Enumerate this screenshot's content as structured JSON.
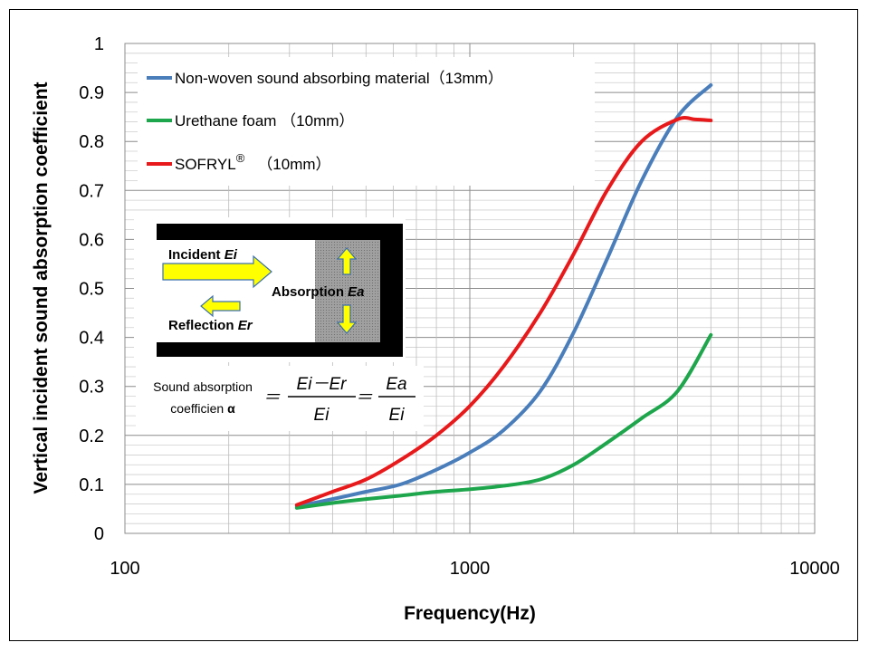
{
  "chart_data": {
    "type": "line",
    "xscale": "log",
    "xlim": [
      100,
      10000
    ],
    "ylim": [
      0,
      1
    ],
    "xticks": [
      "100",
      "1000",
      "10000"
    ],
    "yticks": [
      "0",
      "0.1",
      "0.2",
      "0.3",
      "0.4",
      "0.5",
      "0.6",
      "0.7",
      "0.8",
      "0.9",
      "1"
    ],
    "xlabel": "Frequency(Hz)",
    "ylabel": "Vertical incident sound absorption coefficient",
    "grid": true,
    "legend_position": "top-left",
    "series": [
      {
        "name": "Non-woven sound absorbing material（13mm）",
        "color": "#4a7ebb",
        "x": [
          315,
          400,
          500,
          630,
          800,
          1000,
          1250,
          1600,
          2000,
          2500,
          3150,
          4000,
          5000
        ],
        "y": [
          0.055,
          0.07,
          0.085,
          0.1,
          0.13,
          0.165,
          0.21,
          0.29,
          0.41,
          0.56,
          0.72,
          0.85,
          0.915
        ]
      },
      {
        "name": "Urethane foam （10mm）",
        "color": "#1ea64c",
        "x": [
          315,
          400,
          500,
          630,
          800,
          1000,
          1250,
          1600,
          2000,
          2500,
          3150,
          4000,
          5000
        ],
        "y": [
          0.052,
          0.062,
          0.07,
          0.077,
          0.085,
          0.09,
          0.097,
          0.11,
          0.14,
          0.185,
          0.235,
          0.29,
          0.405
        ]
      },
      {
        "name": "SOFRYL",
        "color": "#e8191b",
        "x": [
          315,
          400,
          500,
          630,
          800,
          1000,
          1250,
          1600,
          2000,
          2500,
          3150,
          4000,
          4500,
          5000
        ],
        "y": [
          0.058,
          0.085,
          0.11,
          0.15,
          0.2,
          0.26,
          0.34,
          0.45,
          0.57,
          0.7,
          0.8,
          0.845,
          0.845,
          0.843
        ]
      }
    ],
    "legend_labels": {
      "sofryl_name": "SOFRYL",
      "sofryl_mark": "®",
      "sofryl_suffix": "（10mm）"
    },
    "inset": {
      "incident_label": "Incident",
      "incident_symbol": "Ei",
      "absorption_label": "Absorption",
      "absorption_symbol": "Ea",
      "reflection_label": "Reflection",
      "reflection_symbol": "Er",
      "formula_line1": "Sound absorption",
      "formula_line2": "coefficien",
      "formula_alpha": "α",
      "frac1_num": "Ei－Er",
      "frac1_den": "Ei",
      "frac2_num": "Ea",
      "frac2_den": "Ei",
      "equals": "＝"
    }
  }
}
